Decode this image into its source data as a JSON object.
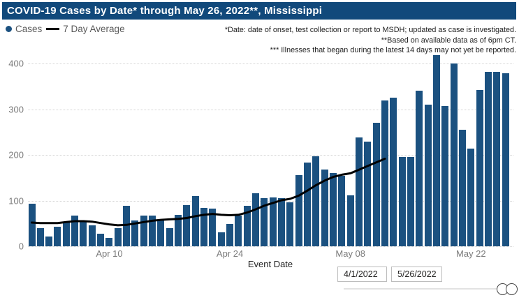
{
  "header": {
    "title": "COVID-19 Cases by Date* through May 26, 2022**, Mississippi"
  },
  "legend": {
    "cases_label": "Cases",
    "avg_label": "7 Day Average"
  },
  "annotations": {
    "line1": "*Date: date of onset, test collection or report to MSDH; updated as case is investigated.",
    "line2": "**Based on available data as of 6pm CT.",
    "line3": "*** Illnesses that began during the latest 14 days may not yet be reported."
  },
  "x_axis": {
    "title": "Event Date"
  },
  "slider": {
    "start_value": "4/1/2022",
    "end_value": "5/26/2022"
  },
  "colors": {
    "header_bg": "#11497B",
    "bar": "#1B5180",
    "avg_line": "#000000",
    "axis_text": "#7A7A7A",
    "annotation_text": "#1F1F1F"
  },
  "chart_data": {
    "type": "bar",
    "title": "COVID-19 Cases by Date* through May 26, 2022**, Mississippi",
    "xlabel": "Event Date",
    "ylabel": "",
    "ylim": [
      0,
      425
    ],
    "y_ticks": [
      0,
      100,
      200,
      300,
      400
    ],
    "grid": "dotted-horizontal",
    "legend_position": "top-left",
    "x_ticks": [
      {
        "label": "Apr 10",
        "day": 10
      },
      {
        "label": "Apr 24",
        "day": 24
      },
      {
        "label": "May 08",
        "day": 38
      },
      {
        "label": "May 22",
        "day": 52
      }
    ],
    "categories": [
      "Apr 1",
      "Apr 2",
      "Apr 3",
      "Apr 4",
      "Apr 5",
      "Apr 6",
      "Apr 7",
      "Apr 8",
      "Apr 9",
      "Apr 10",
      "Apr 11",
      "Apr 12",
      "Apr 13",
      "Apr 14",
      "Apr 15",
      "Apr 16",
      "Apr 17",
      "Apr 18",
      "Apr 19",
      "Apr 20",
      "Apr 21",
      "Apr 22",
      "Apr 23",
      "Apr 24",
      "Apr 25",
      "Apr 26",
      "Apr 27",
      "Apr 28",
      "Apr 29",
      "Apr 30",
      "May 1",
      "May 2",
      "May 3",
      "May 4",
      "May 5",
      "May 6",
      "May 7",
      "May 8",
      "May 9",
      "May 10",
      "May 11",
      "May 12",
      "May 13",
      "May 14",
      "May 15",
      "May 16",
      "May 17",
      "May 18",
      "May 19",
      "May 20",
      "May 21",
      "May 22",
      "May 23",
      "May 24",
      "May 25",
      "May 26"
    ],
    "series": [
      {
        "name": "Cases",
        "type": "bar",
        "color": "#1B5180",
        "values": [
          93,
          40,
          22,
          43,
          53,
          68,
          55,
          46,
          28,
          18,
          40,
          89,
          57,
          67,
          67,
          57,
          40,
          69,
          90,
          110,
          84,
          82,
          30,
          49,
          68,
          89,
          116,
          106,
          107,
          105,
          96,
          156,
          184,
          198,
          168,
          160,
          155,
          112,
          238,
          230,
          271,
          320,
          326,
          196,
          196,
          341,
          310,
          419,
          307,
          401,
          256,
          214,
          343,
          383,
          382,
          379
        ]
      },
      {
        "name": "7 Day Average",
        "type": "line",
        "color": "#000000",
        "values": [
          52,
          51,
          51,
          51,
          53,
          55,
          55,
          54,
          51,
          48,
          46,
          47,
          50,
          53,
          56,
          58,
          59,
          60,
          62,
          66,
          69,
          71,
          69,
          68,
          69,
          74,
          81,
          89,
          95,
          101,
          104,
          111,
          122,
          134,
          144,
          152,
          157,
          160,
          168,
          176,
          184,
          192,
          null,
          null,
          null,
          null,
          null,
          null,
          null,
          null,
          null,
          null,
          null,
          null,
          null,
          null
        ]
      }
    ]
  }
}
